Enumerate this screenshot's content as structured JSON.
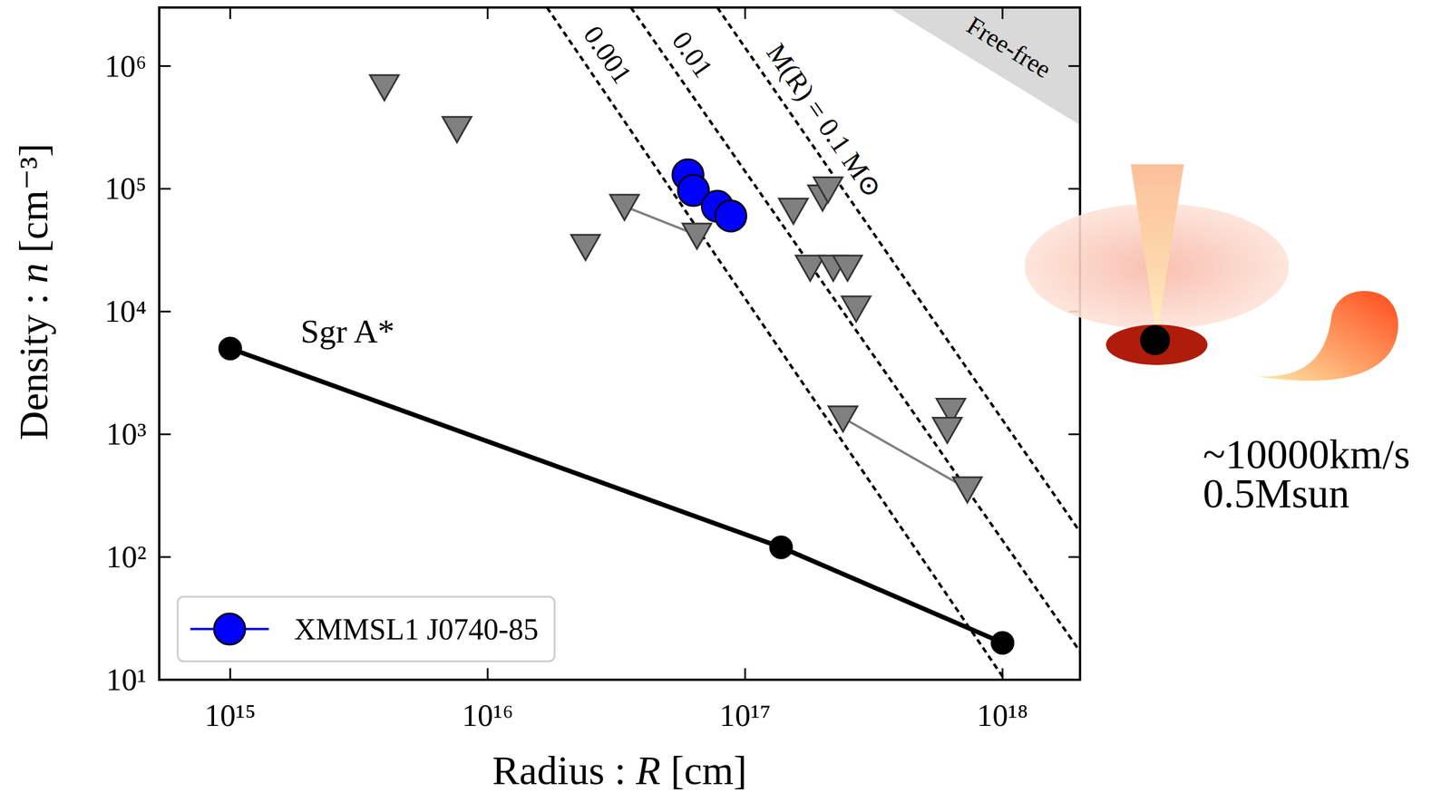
{
  "chart_data": {
    "type": "scatter",
    "xlabel": "Radius : R [cm]",
    "ylabel": "Density : n [cm⁻³]",
    "log": true,
    "xlim": [
      530000000000000.0,
      2e+18
    ],
    "ylim": [
      10,
      3000000.0
    ],
    "xticks": [
      {
        "value": 1000000000000000.0,
        "label": "10¹⁵"
      },
      {
        "value": 1e+16,
        "label": "10¹⁶"
      },
      {
        "value": 1e+17,
        "label": "10¹⁷"
      },
      {
        "value": 1e+18,
        "label": "10¹⁸"
      }
    ],
    "yticks": [
      {
        "value": 10,
        "label": "10¹"
      },
      {
        "value": 100,
        "label": "10²"
      },
      {
        "value": 1000,
        "label": "10³"
      },
      {
        "value": 10000,
        "label": "10⁴"
      },
      {
        "value": 100000,
        "label": "10⁵"
      },
      {
        "value": 1000000,
        "label": "10⁶"
      }
    ],
    "legend": "lower left",
    "series": [
      {
        "label": "Free-free",
        "type": "area",
        "color": "#d9d9d9",
        "x": [
          3.6e+17,
          2e+18
        ],
        "values": [
          3000000.0,
          330000.0
        ]
      },
      {
        "label": "0.001",
        "type": "line",
        "line_style": "dashed",
        "color": "#000000",
        "x": [
          1.7e+16,
          1.02e+18
        ],
        "values": [
          3000000.0,
          10
        ]
      },
      {
        "label": "0.01",
        "type": "line",
        "line_style": "dashed",
        "color": "#000000",
        "x": [
          3.6e+16,
          2e+18
        ],
        "values": [
          3000000.0,
          17
        ]
      },
      {
        "label": "M(R) = 0.1 M⊙",
        "type": "line",
        "line_style": "dashed",
        "color": "#000000",
        "x": [
          7.8e+16,
          2e+18
        ],
        "values": [
          3000000.0,
          160
        ]
      },
      {
        "label": "Sgr A*",
        "type": "line",
        "line_style": "solid",
        "marker": "circle",
        "color": "#000000",
        "x": [
          1000000000000000.0,
          1.38e+17,
          1e+18
        ],
        "values": [
          5000,
          120,
          20
        ]
      },
      {
        "type": "line",
        "line_style": "solid",
        "color": "#808080",
        "x": [
          3.4e+16,
          6.5e+16,
          null,
          2.4e+17,
          7.3e+17
        ],
        "values": [
          72000,
          42000,
          null,
          1360,
          360
        ]
      },
      {
        "type": "scatter",
        "marker": "triangle-down",
        "color": "#808080",
        "x": [
          3970000000000000.0,
          7600000000000000.0,
          3.4e+16,
          6.5e+16,
          2.4e+16,
          1.54e+17,
          2e+17,
          2.1e+17,
          1.79e+17,
          2.2e+17,
          2.5e+17,
          2.7e+17,
          2.4e+17,
          7.3e+17,
          6.3e+17,
          6.1e+17
        ],
        "values": [
          680000,
          310000,
          72000,
          42000,
          34000,
          67000,
          86000,
          100000,
          23000,
          23000,
          23000,
          10700,
          1360,
          360,
          1570,
          1100
        ]
      },
      {
        "name": "XMMSL1 J0740-85",
        "type": "line",
        "line_style": "solid",
        "marker": "circle",
        "color": "#0000ff",
        "x": [
          6e+16,
          6.3e+16,
          7.8e+16,
          8.8e+16
        ],
        "values": [
          130000,
          97000,
          72000,
          60000
        ]
      }
    ],
    "annotations": [
      {
        "text": "~10000km/s"
      },
      {
        "text": "0.5Msun"
      }
    ]
  }
}
